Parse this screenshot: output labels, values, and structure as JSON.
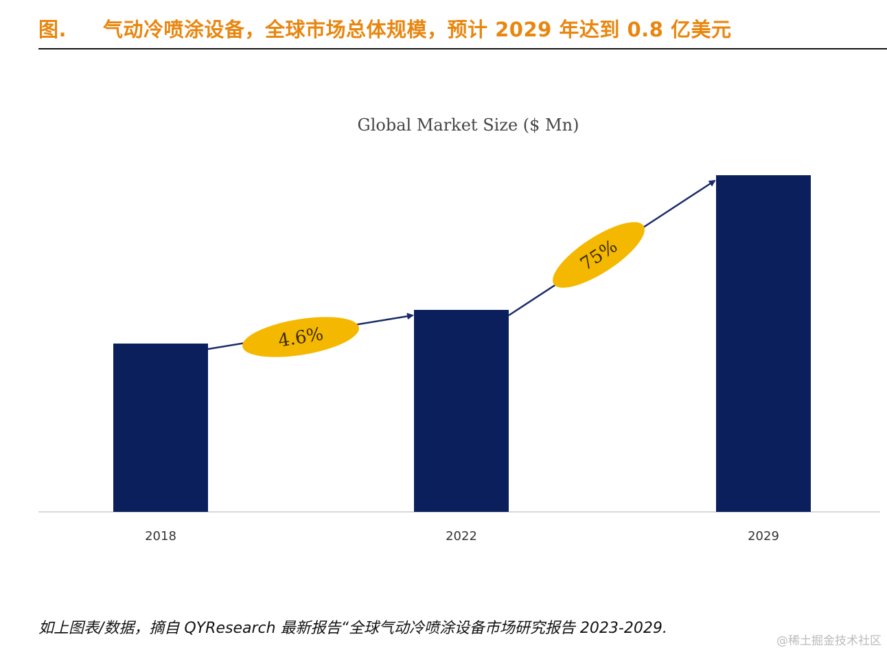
{
  "header": {
    "title": "图.     气动冷喷涂设备，全球市场总体规模，预计 2029 年达到 0.8 亿美元"
  },
  "chart_data": {
    "type": "bar",
    "title": "Global Market Size ($ Mn)",
    "xlabel": "",
    "ylabel": "",
    "categories": [
      "2018",
      "2022",
      "2029"
    ],
    "values": [
      50,
      60,
      100
    ],
    "values_note": "relative bar heights (no y-axis shown); 2029 ≈ 80 $Mn per header",
    "ylim": [
      0,
      100
    ],
    "grid": false,
    "legend": "none",
    "bar_color": "#0a1f5c",
    "annotations": [
      {
        "from": "2018",
        "to": "2022",
        "label": "4.6%",
        "shape": "ellipse",
        "color": "#f5b800"
      },
      {
        "from": "2022",
        "to": "2029",
        "label": "75%",
        "shape": "ellipse",
        "color": "#f5b800"
      }
    ]
  },
  "footer": {
    "source": "如上图表/数据，摘自 QYResearch 最新报告“全球气动冷喷涂设备市场研究报告 2023-2029."
  },
  "watermark": "@稀土掘金技术社区"
}
